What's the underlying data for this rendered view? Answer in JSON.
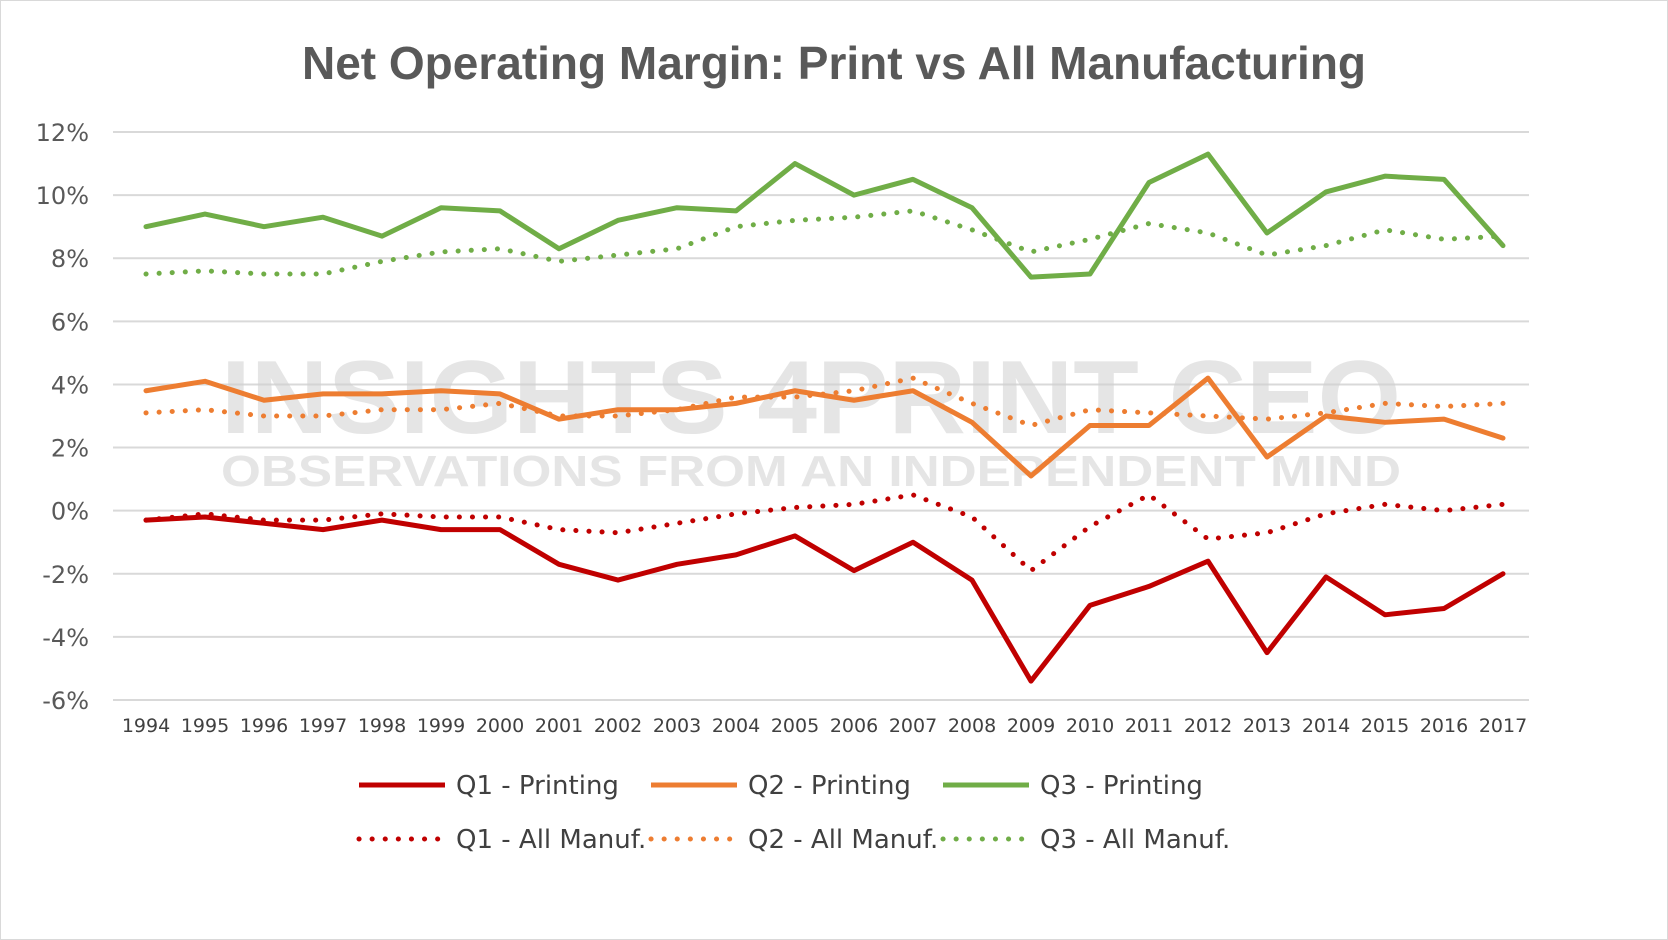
{
  "chart_data": {
    "type": "line",
    "title": "Net Operating Margin: Print vs All Manufacturing",
    "xlabel": "",
    "ylabel": "",
    "ylim": [
      -6,
      12
    ],
    "y_ticks": [
      12,
      10,
      8,
      6,
      4,
      2,
      0,
      -2,
      -4,
      -6
    ],
    "y_tick_labels": [
      "12%",
      "10%",
      "8%",
      "6%",
      "4%",
      "2%",
      "0%",
      "-2%",
      "-4%",
      "-6%"
    ],
    "grid": true,
    "legend_position": "bottom",
    "categories": [
      "1994",
      "1995",
      "1996",
      "1997",
      "1998",
      "1999",
      "2000",
      "2001",
      "2002",
      "2003",
      "2004",
      "2005",
      "2006",
      "2007",
      "2008",
      "2009",
      "2010",
      "2011",
      "2012",
      "2013",
      "2014",
      "2015",
      "2016",
      "2017"
    ],
    "series": [
      {
        "name": "Q1 - Printing",
        "color": "#c00000",
        "style": "solid",
        "values": [
          -0.3,
          -0.2,
          -0.4,
          -0.6,
          -0.3,
          -0.6,
          -0.6,
          -1.7,
          -2.2,
          -1.7,
          -1.4,
          -0.8,
          -1.9,
          -1.0,
          -2.2,
          -5.4,
          -3.0,
          -2.4,
          -1.6,
          -4.5,
          -2.1,
          -3.3,
          -3.1,
          -2.0
        ]
      },
      {
        "name": "Q2 - Printing",
        "color": "#ed7d31",
        "style": "solid",
        "values": [
          3.8,
          4.1,
          3.5,
          3.7,
          3.7,
          3.8,
          3.7,
          2.9,
          3.2,
          3.2,
          3.4,
          3.8,
          3.5,
          3.8,
          2.8,
          1.1,
          2.7,
          2.7,
          4.2,
          1.7,
          3.0,
          2.8,
          2.9,
          2.3
        ]
      },
      {
        "name": "Q3 - Printing",
        "color": "#70ad47",
        "style": "solid",
        "values": [
          9.0,
          9.4,
          9.0,
          9.3,
          8.7,
          9.6,
          9.5,
          8.3,
          9.2,
          9.6,
          9.5,
          11.0,
          10.0,
          10.5,
          9.6,
          7.4,
          7.5,
          10.4,
          11.3,
          8.8,
          10.1,
          10.6,
          10.5,
          8.4
        ]
      },
      {
        "name": "Q1 - All Manuf.",
        "color": "#c00000",
        "style": "dotted",
        "values": [
          -0.3,
          -0.1,
          -0.3,
          -0.3,
          -0.1,
          -0.2,
          -0.2,
          -0.6,
          -0.7,
          -0.4,
          -0.1,
          0.1,
          0.2,
          0.5,
          -0.2,
          -1.9,
          -0.5,
          0.5,
          -0.9,
          -0.7,
          -0.1,
          0.2,
          0.0,
          0.2
        ]
      },
      {
        "name": "Q2 - All Manuf.",
        "color": "#ed7d31",
        "style": "dotted",
        "values": [
          3.1,
          3.2,
          3.0,
          3.0,
          3.2,
          3.2,
          3.4,
          3.0,
          3.0,
          3.2,
          3.6,
          3.6,
          3.8,
          4.2,
          3.4,
          2.7,
          3.2,
          3.1,
          3.0,
          2.9,
          3.1,
          3.4,
          3.3,
          3.4
        ]
      },
      {
        "name": "Q3 - All Manuf.",
        "color": "#70ad47",
        "style": "dotted",
        "values": [
          7.5,
          7.6,
          7.5,
          7.5,
          7.9,
          8.2,
          8.3,
          7.9,
          8.1,
          8.3,
          9.0,
          9.2,
          9.3,
          9.5,
          8.9,
          8.2,
          8.6,
          9.1,
          8.8,
          8.1,
          8.4,
          8.9,
          8.6,
          8.7
        ]
      }
    ],
    "watermark": {
      "line1": "INSIGHTS 4PRINT CEO",
      "line2": "OBSERVATIONS FROM AN INDEPENDENT MIND"
    }
  }
}
